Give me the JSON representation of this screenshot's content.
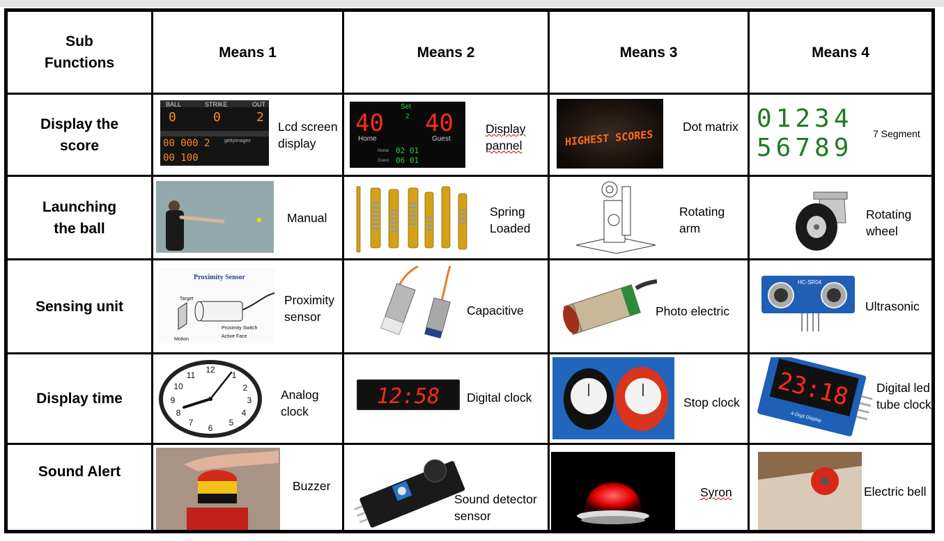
{
  "header": {
    "sub_functions": "Sub\nFunctions",
    "means": [
      "Means 1",
      "Means 2",
      "Means 3",
      "Means 4"
    ]
  },
  "rows": [
    {
      "name": "Display the score",
      "means": [
        "Lcd screen display",
        "Display pannel",
        "Dot matrix",
        "7 Segment"
      ]
    },
    {
      "name": "Launching the ball",
      "means": [
        "Manual",
        "Spring Loaded",
        "Rotating arm",
        "Rotating wheel"
      ]
    },
    {
      "name": "Sensing unit",
      "means": [
        "Proximity sensor",
        "Capacitive",
        "Photo electric",
        "Ultrasonic"
      ]
    },
    {
      "name": "Display time",
      "means": [
        "Analog clock",
        "Digital clock",
        "Stop clock",
        "Digital led tube clock"
      ]
    },
    {
      "name": "Sound Alert",
      "means": [
        "Buzzer",
        "Sound detector sensor",
        "Syron",
        "Electric bell"
      ]
    }
  ],
  "image_text": {
    "scoreboard": {
      "ball": "BALL",
      "strike": "STRIKE",
      "out": "OUT",
      "v1": "0",
      "v2": "0",
      "v3": "2",
      "row1": "00 000 2",
      "row2": "00 100",
      "getty": "gettyimages"
    },
    "panel": {
      "set": "Set",
      "set_num": "2",
      "left": "40",
      "right": "40",
      "home": "Home",
      "guest": "Guest",
      "home2": "Home",
      "guest2": "Guest",
      "h_val": "02 01",
      "g_val": "06 01"
    },
    "dotmatrix": "HIGHEST SCORES",
    "seg7_row1": "01234",
    "seg7_row2": "56789",
    "proximity_title": "Proximity Sensor",
    "proximity_target": "Target",
    "proximity_switch": "Proximity Switch",
    "proximity_face": "Active Face",
    "proximity_motion": "Motion",
    "ultrasonic_model": "HC-SR04",
    "digital_clock": "12:58",
    "led_tube": "23:18",
    "led_tube_label": "4-Digit Display"
  },
  "colors": {
    "led_red": "#ff2a1a",
    "seg_green": "#1f7a1f",
    "panel_bg": "#0a0a0a",
    "blue_board": "#1f5fb5"
  }
}
